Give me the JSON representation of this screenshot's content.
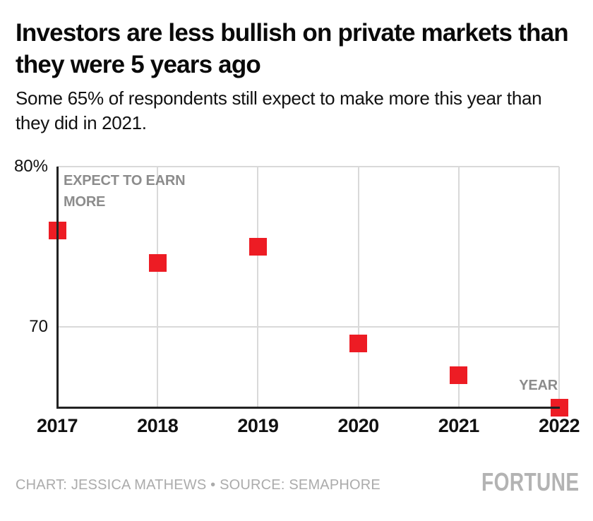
{
  "header": {
    "title": "Investors are less bullish on private markets than they were 5 years ago",
    "subtitle": "Some 65% of respondents still expect to make more this year than they did in 2021."
  },
  "chart_data": {
    "type": "scatter",
    "x": [
      2017,
      2018,
      2019,
      2020,
      2021,
      2022
    ],
    "xtick_labels": [
      "2017",
      "2018",
      "2019",
      "2020",
      "2021",
      "2022"
    ],
    "values": [
      76,
      74,
      75,
      69,
      67,
      65
    ],
    "series_name": "Expect to earn more",
    "annotation_y": "EXPECT TO EARN MORE",
    "annotation_x": "YEAR",
    "yticks": [
      80,
      70
    ],
    "ytick_labels": [
      "80%",
      "70"
    ],
    "ylim": [
      65,
      80
    ],
    "grid": true,
    "marker": "square",
    "marker_color": "#ED1C24",
    "legend_position": "none"
  },
  "footer": {
    "credit": "CHART: JESSICA MATHEWS • SOURCE: SEMAPHORE",
    "logo": "FORTUNE"
  },
  "colors": {
    "marker": "#ED1C24",
    "axis": "#222222",
    "gridline": "#d9d9d9",
    "annotation_gray": "#8c8c8c",
    "credit_gray": "#ababab",
    "logo_gray": "#b3b3b3",
    "text": "#0a0a0a",
    "background": "#ffffff"
  }
}
